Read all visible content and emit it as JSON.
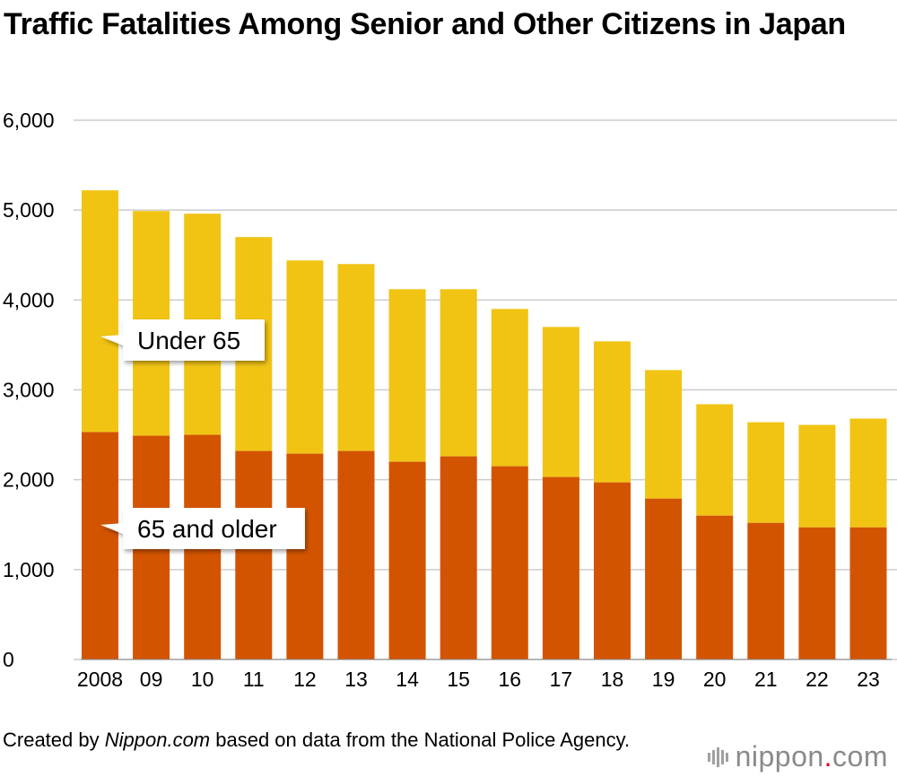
{
  "title": "Traffic Fatalities Among Senior and Other Citizens in Japan",
  "footer": {
    "prefix": "Created by ",
    "source_name": "Nippon.com",
    "suffix": " based on data from the National Police Agency."
  },
  "logo": {
    "word": "nippon",
    "dot": ".",
    "tld": "com",
    "color_dot": "#e0001b"
  },
  "colors": {
    "older": "#d35400",
    "under": "#f1c414",
    "grid": "#cccccc"
  },
  "chart_data": {
    "type": "bar",
    "stacked": true,
    "categories": [
      "2008",
      "09",
      "10",
      "11",
      "12",
      "13",
      "14",
      "15",
      "16",
      "17",
      "18",
      "19",
      "20",
      "21",
      "22",
      "23"
    ],
    "series": [
      {
        "name": "65 and older",
        "values": [
          2530,
          2490,
          2500,
          2320,
          2290,
          2320,
          2200,
          2260,
          2150,
          2030,
          1970,
          1790,
          1600,
          1520,
          1470,
          1470
        ]
      },
      {
        "name": "Under 65",
        "values": [
          2690,
          2500,
          2460,
          2380,
          2150,
          2080,
          1920,
          1860,
          1750,
          1670,
          1570,
          1430,
          1240,
          1120,
          1140,
          1210
        ]
      }
    ],
    "yticks": [
      "0",
      "1,000",
      "2,000",
      "3,000",
      "4,000",
      "5,000",
      "6,000"
    ],
    "ylim": [
      0,
      6000
    ],
    "grid": true,
    "legend": "callouts inside chart"
  }
}
